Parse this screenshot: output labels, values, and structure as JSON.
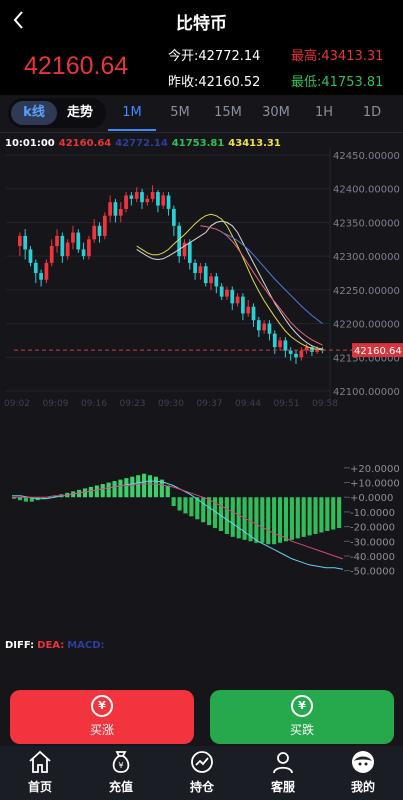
{
  "header": {
    "title": "比特币"
  },
  "quote": {
    "price": "42160.64",
    "open_label": "今开:",
    "open": "42772.14",
    "high_label": "最高:",
    "high": "43413.31",
    "prev_label": "昨收:",
    "prev": "42160.52",
    "low_label": "最低:",
    "low": "41753.81"
  },
  "tabs": {
    "kline": "k线",
    "trend": "走势",
    "periods": [
      "1M",
      "5M",
      "15M",
      "30M",
      "1H",
      "1D"
    ],
    "active_period": "1M"
  },
  "legend": {
    "time": "10:01:00",
    "close": "42160.64",
    "ma": "42772.14",
    "low": "41753.81",
    "high": "43413.31"
  },
  "chart_data": {
    "type": "candlestick",
    "y_ticks": [
      "42450.00000",
      "42400.00000",
      "42350.00000",
      "42300.00000",
      "42250.00000",
      "42200.00000",
      "42150.00000",
      "42100.00000"
    ],
    "x_ticks": [
      "09:02",
      "09:09",
      "09:16",
      "09:23",
      "09:30",
      "09:37",
      "09:44",
      "09:51",
      "09:58"
    ],
    "ylim": [
      42100,
      42450
    ],
    "last_price": "42160.64",
    "last_price_value": 42160.64,
    "candles": [
      [
        42315,
        42330,
        42300,
        42335
      ],
      [
        42330,
        42310,
        42295,
        42340
      ],
      [
        42310,
        42290,
        42285,
        42315
      ],
      [
        42290,
        42275,
        42260,
        42295
      ],
      [
        42275,
        42265,
        42255,
        42280
      ],
      [
        42265,
        42290,
        42260,
        42295
      ],
      [
        42290,
        42315,
        42285,
        42325
      ],
      [
        42315,
        42330,
        42305,
        42340
      ],
      [
        42330,
        42300,
        42290,
        42335
      ],
      [
        42300,
        42320,
        42295,
        42325
      ],
      [
        42320,
        42335,
        42310,
        42345
      ],
      [
        42335,
        42310,
        42305,
        42340
      ],
      [
        42310,
        42300,
        42295,
        42320
      ],
      [
        42300,
        42325,
        42295,
        42330
      ],
      [
        42325,
        42345,
        42320,
        42355
      ],
      [
        42345,
        42330,
        42320,
        42350
      ],
      [
        42330,
        42360,
        42325,
        42365
      ],
      [
        42360,
        42380,
        42350,
        42390
      ],
      [
        42380,
        42360,
        42350,
        42385
      ],
      [
        42360,
        42370,
        42350,
        42380
      ],
      [
        42370,
        42390,
        42365,
        42395
      ],
      [
        42390,
        42385,
        42375,
        42395
      ],
      [
        42385,
        42395,
        42380,
        42402
      ],
      [
        42395,
        42380,
        42370,
        42400
      ],
      [
        42380,
        42385,
        42375,
        42390
      ],
      [
        42385,
        42395,
        42380,
        42405
      ],
      [
        42395,
        42375,
        42365,
        42398
      ],
      [
        42375,
        42390,
        42370,
        42395
      ],
      [
        42390,
        42370,
        42360,
        42395
      ],
      [
        42370,
        42345,
        42330,
        42375
      ],
      [
        42345,
        42300,
        42290,
        42350
      ],
      [
        42300,
        42320,
        42295,
        42325
      ],
      [
        42320,
        42290,
        42280,
        42325
      ],
      [
        42290,
        42275,
        42265,
        42295
      ],
      [
        42275,
        42285,
        42265,
        42290
      ],
      [
        42285,
        42260,
        42255,
        42290
      ],
      [
        42260,
        42270,
        42250,
        42275
      ],
      [
        42270,
        42255,
        42245,
        42275
      ],
      [
        42255,
        42240,
        42235,
        42260
      ],
      [
        42240,
        42250,
        42235,
        42255
      ],
      [
        42250,
        42230,
        42220,
        42255
      ],
      [
        42230,
        42240,
        42225,
        42245
      ],
      [
        42240,
        42215,
        42205,
        42245
      ],
      [
        42215,
        42225,
        42210,
        42235
      ],
      [
        42225,
        42205,
        42195,
        42230
      ],
      [
        42205,
        42190,
        42180,
        42210
      ],
      [
        42190,
        42200,
        42185,
        42205
      ],
      [
        42200,
        42185,
        42175,
        42205
      ],
      [
        42185,
        42165,
        42155,
        42190
      ],
      [
        42165,
        42175,
        42160,
        42180
      ],
      [
        42175,
        42160,
        42150,
        42180
      ],
      [
        42160,
        42155,
        42145,
        42165
      ],
      [
        42155,
        42150,
        42140,
        42160
      ],
      [
        42150,
        42160,
        42145,
        42165
      ],
      [
        42160,
        42165,
        42155,
        42170
      ],
      [
        42165,
        42158,
        42152,
        42168
      ],
      [
        42158,
        42162,
        42155,
        42166
      ],
      [
        42162,
        42160,
        42156,
        42165
      ]
    ],
    "ma_white": [
      42310,
      42305,
      42300,
      42296,
      42295,
      42296,
      42300,
      42305,
      42310,
      42315,
      42320,
      42325,
      42330,
      42335,
      42345,
      42350,
      42352,
      42350,
      42345,
      42335,
      42320,
      42305,
      42290,
      42275,
      42260,
      42245,
      42230,
      42218,
      42206,
      42195,
      42186,
      42178,
      42172,
      42167,
      42164,
      42162
    ],
    "ma_yellow": [
      42315,
      42310,
      42305,
      42302,
      42302,
      42305,
      42310,
      42318,
      42325,
      42332,
      42340,
      42348,
      42355,
      42360,
      42362,
      42360,
      42355,
      42345,
      42330,
      42315,
      42298,
      42280,
      42263,
      42248,
      42234,
      42222,
      42210,
      42199,
      42189,
      42181,
      42175,
      42170,
      42166,
      42163,
      42162,
      42161
    ],
    "ma_pink": [
      42345,
      42344,
      42342,
      42340,
      42336,
      42330,
      42322,
      42312,
      42300,
      42288,
      42276,
      42264,
      42253,
      42242,
      42232,
      42222,
      42212,
      42202,
      42194,
      42187,
      42181,
      42176,
      42172,
      42168
    ],
    "ma_blue": [
      42335,
      42332,
      42328,
      42323,
      42317,
      42310,
      42302,
      42293,
      42284,
      42275,
      42266,
      42258,
      42250,
      42242,
      42234,
      42226,
      42219,
      42212,
      42206,
      42200
    ],
    "macd_ticks": [
      "+20.0000",
      "+10.0000",
      "+0.0000",
      "-10.0000",
      "-20.0000",
      "-30.0000",
      "-40.0000",
      "-50.0000"
    ],
    "macd_ylim": [
      -55,
      24
    ],
    "macd_hist": [
      -1,
      -2,
      -3,
      -3,
      -2,
      -1,
      0,
      1,
      2,
      3,
      4,
      5,
      6,
      7,
      8,
      9,
      10,
      11,
      12,
      13,
      14,
      15,
      16,
      15,
      14,
      12,
      8,
      -6,
      -9,
      -11,
      -13,
      -15,
      -17,
      -19,
      -21,
      -23,
      -25,
      -27,
      -28,
      -29,
      -30,
      -31,
      -31,
      -32,
      -32,
      -31,
      -30,
      -29,
      -28,
      -27,
      -26,
      -25,
      -24,
      -23,
      -22,
      -21
    ],
    "macd_diff": [
      1,
      1,
      0,
      -1,
      -1,
      0,
      1,
      2,
      3,
      4,
      5,
      6,
      7,
      8,
      9,
      10,
      11,
      11,
      10,
      8,
      5,
      2,
      -2,
      -6,
      -10,
      -14,
      -18,
      -22,
      -26,
      -30,
      -33,
      -36,
      -39,
      -42,
      -44,
      -46,
      -47,
      -48,
      -48,
      -49
    ],
    "macd_dea": [
      0,
      0,
      0,
      0,
      0,
      1,
      1,
      2,
      3,
      4,
      5,
      6,
      7,
      8,
      8,
      9,
      9,
      9,
      8,
      7,
      5,
      3,
      1,
      -1,
      -4,
      -7,
      -10,
      -13,
      -16,
      -19,
      -22,
      -25,
      -27,
      -30,
      -32,
      -34,
      -36,
      -38,
      -40,
      -42
    ]
  },
  "macd_legend": {
    "diff": "DIFF:",
    "dea": "DEA:",
    "macd": "MACD:"
  },
  "actions": {
    "buy": "买涨",
    "sell": "买跌",
    "buy_icon": "¥",
    "sell_icon": "¥"
  },
  "nav": [
    {
      "label": "首页",
      "icon": "home-icon"
    },
    {
      "label": "充值",
      "icon": "money-bag-icon"
    },
    {
      "label": "持仓",
      "icon": "chart-icon"
    },
    {
      "label": "客服",
      "icon": "person-icon"
    },
    {
      "label": "我的",
      "icon": "avatar-icon"
    }
  ],
  "colors": {
    "up": "#e8343b",
    "down": "#2fbf5a",
    "candle_up": "#f2343e",
    "candle_down": "#2ad0d6",
    "accent": "#3d8bff"
  }
}
